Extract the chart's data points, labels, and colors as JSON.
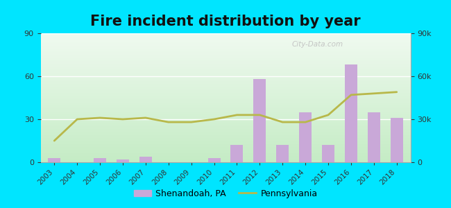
{
  "title": "Fire incident distribution by year",
  "years": [
    2003,
    2004,
    2005,
    2006,
    2007,
    2008,
    2009,
    2010,
    2011,
    2012,
    2013,
    2014,
    2015,
    2016,
    2017,
    2018
  ],
  "shenandoah_bars": [
    3,
    0,
    3,
    2,
    4,
    0,
    0,
    3,
    12,
    58,
    12,
    35,
    12,
    68,
    35,
    31
  ],
  "pennsylvania_line": [
    15000,
    30000,
    31000,
    30000,
    31000,
    28000,
    28000,
    30000,
    33000,
    33000,
    28000,
    28000,
    33000,
    47000,
    48000,
    49000
  ],
  "bar_color": "#c9a8d8",
  "line_color": "#b8b84a",
  "outer_background": "#00e5ff",
  "ylim_left": [
    0,
    90
  ],
  "ylim_right": [
    0,
    90000
  ],
  "grid_color": "#ffffff",
  "title_fontsize": 15,
  "legend_bar_label": "Shenandoah, PA",
  "legend_line_label": "Pennsylvania",
  "watermark": "City-Data.com"
}
